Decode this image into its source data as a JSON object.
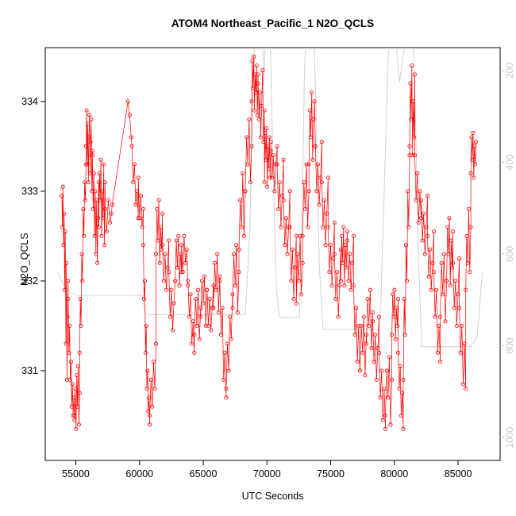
{
  "chart_data": {
    "type": "scatter",
    "title": "ATOM4 Northeast_Pacific_1 N2O_QCLS",
    "xlabel": "UTC Seconds",
    "ylabel": "N2O_QCLS",
    "xlim": [
      52600,
      88300
    ],
    "ylim": [
      330.0,
      334.6
    ],
    "y2lim": [
      150,
      1050
    ],
    "y2_reversed": true,
    "x_ticks": [
      55000,
      60000,
      65000,
      70000,
      75000,
      80000,
      85000
    ],
    "y_ticks": [
      331,
      332,
      333,
      334
    ],
    "y2_ticks": [
      200,
      400,
      600,
      800,
      1000
    ],
    "grid": false,
    "legend": "none",
    "colors": {
      "series": "#ff0000",
      "secondary": "#d4d4d4",
      "axis": "#000000",
      "right_axis": "#c8c8c8"
    },
    "series": [
      {
        "name": "N2O_QCLS",
        "style": "points+line",
        "marker": "open-circle",
        "clusters": [
          [
            53900,
            54400,
            [
              332.95,
              332.6,
              333.05,
              332.4,
              332.75,
              331.9,
              332.55,
              331.3,
              332.2,
              330.9,
              331.6,
              332.0
            ]
          ],
          [
            54400,
            54900,
            [
              331.8,
              331.2,
              331.5,
              330.9,
              331.1,
              330.6,
              330.85,
              330.5,
              330.7,
              330.45
            ]
          ],
          [
            54900,
            55300,
            [
              330.5,
              330.8,
              330.35,
              330.95,
              330.6,
              331.05,
              330.4,
              330.75
            ]
          ],
          [
            55300,
            55800,
            [
              331.2,
              331.8,
              331.5,
              332.3,
              332.0,
              332.8,
              332.5,
              333.1,
              332.9,
              333.3
            ]
          ],
          [
            55800,
            56300,
            [
              333.5,
              333.9,
              333.3,
              333.75,
              333.1,
              333.6,
              333.85,
              333.2,
              333.55,
              333.8,
              333.0,
              333.45
            ]
          ],
          [
            56300,
            56800,
            [
              333.4,
              332.8,
              333.2,
              332.5,
              333.0,
              332.3,
              332.9,
              332.2,
              332.7,
              333.1
            ]
          ],
          [
            56800,
            57300,
            [
              332.6,
              333.2,
              332.9,
              333.35,
              332.5,
              333.0,
              332.7,
              333.3,
              332.4,
              333.1
            ]
          ],
          [
            57300,
            57800,
            [
              332.8,
              332.55,
              332.9,
              332.65,
              332.75
            ]
          ],
          [
            57850,
            57950,
            [
              332.85
            ]
          ],
          [
            59100,
            59350,
            [
              334.0,
              333.85,
              333.6
            ]
          ],
          [
            59400,
            59900,
            [
              333.5,
              333.1,
              333.3,
              332.85,
              333.0,
              332.7
            ]
          ],
          [
            59900,
            60300,
            [
              333.15,
              332.7,
              332.95,
              332.6,
              332.8
            ]
          ],
          [
            60300,
            60800,
            [
              332.4,
              331.8,
              332.0,
              331.2,
              331.5,
              330.8,
              331.0,
              330.55,
              330.7,
              330.4
            ]
          ],
          [
            60800,
            61300,
            [
              330.5,
              330.9,
              330.6,
              331.1,
              330.8,
              331.3
            ]
          ],
          [
            61300,
            61800,
            [
              332.3,
              332.8,
              332.45,
              332.9,
              332.2,
              332.6,
              332.35,
              332.75
            ]
          ],
          [
            61800,
            62300,
            [
              332.4,
              332.0,
              332.3,
              331.9,
              332.15,
              332.45
            ]
          ],
          [
            62300,
            62800,
            [
              332.1,
              331.6,
              331.9,
              331.45,
              331.75,
              332.0
            ]
          ],
          [
            62800,
            63300,
            [
              332.0,
              332.45,
              332.15,
              332.5,
              331.95,
              332.3,
              332.1
            ]
          ],
          [
            63300,
            63800,
            [
              332.4,
              332.1,
              332.5,
              332.2,
              332.35,
              331.95
            ]
          ],
          [
            63800,
            64300,
            [
              332.0,
              331.6,
              331.85,
              331.3,
              331.55,
              331.2
            ]
          ],
          [
            64300,
            64800,
            [
              331.4,
              331.8,
              331.5,
              331.9,
              331.35,
              331.7
            ]
          ],
          [
            64800,
            65300,
            [
              331.6,
              332.0,
              331.75,
              332.05,
              331.5,
              331.9
            ]
          ],
          [
            65300,
            65800,
            [
              331.9,
              331.5,
              331.8,
              331.45,
              331.7,
              331.95
            ]
          ],
          [
            65800,
            66300,
            [
              331.7,
              332.2,
              331.9,
              332.3,
              331.65,
              332.05
            ]
          ],
          [
            66300,
            66800,
            [
              332.0,
              331.4,
              331.7,
              330.9,
              331.2,
              330.7
            ]
          ],
          [
            66800,
            67300,
            [
              330.8,
              331.3,
              331.0,
              331.6,
              331.35,
              331.85
            ]
          ],
          [
            67300,
            67800,
            [
              331.7,
              332.3,
              331.95,
              332.4,
              331.65,
              332.1
            ]
          ],
          [
            67800,
            68300,
            [
              332.35,
              332.9,
              332.6,
              333.2,
              332.5,
              333.0
            ]
          ],
          [
            68300,
            68800,
            [
              333.0,
              333.6,
              333.3,
              333.8,
              333.1,
              333.5
            ]
          ],
          [
            68800,
            69300,
            [
              334.0,
              334.45,
              334.15,
              334.5,
              333.9,
              334.3,
              334.1,
              334.4,
              333.85,
              334.2
            ]
          ],
          [
            69300,
            69800,
            [
              334.3,
              333.8,
              334.1,
              333.6,
              333.95,
              334.35,
              333.55,
              333.9
            ]
          ],
          [
            69800,
            70300,
            [
              333.1,
              333.65,
              333.35,
              333.7,
              333.05,
              333.5,
              333.25,
              333.6,
              333.15,
              333.45
            ]
          ],
          [
            70300,
            70800,
            [
              333.55,
              333.15,
              333.4,
              333.0,
              333.3,
              333.5
            ]
          ],
          [
            70800,
            71300,
            [
              333.3,
              332.8,
              333.1,
              332.6,
              332.95,
              333.35
            ]
          ],
          [
            71300,
            71800,
            [
              332.9,
              332.4,
              332.7,
              332.3,
              332.6,
              333.0
            ]
          ],
          [
            71800,
            72300,
            [
              332.6,
              332.0,
              332.35,
              331.8,
              332.15,
              332.5
            ]
          ],
          [
            72300,
            72800,
            [
              331.75,
              332.3,
              332.0,
              332.5,
              331.85,
              332.2
            ]
          ],
          [
            72800,
            73300,
            [
              332.5,
              333.1,
              332.8,
              333.3,
              332.6,
              333.0
            ]
          ],
          [
            73300,
            73800,
            [
              333.3,
              333.9,
              333.6,
              334.1,
              333.35,
              333.8,
              334.0,
              333.5
            ]
          ],
          [
            73800,
            74300,
            [
              333.5,
              333.0,
              333.3,
              332.85,
              333.15,
              333.55
            ]
          ],
          [
            74300,
            74800,
            [
              333.1,
              332.6,
              332.9,
              332.4,
              332.75,
              333.15
            ]
          ],
          [
            74800,
            75300,
            [
              332.6,
              332.1,
              332.4,
              331.95,
              332.25,
              332.65
            ]
          ],
          [
            75300,
            75800,
            [
              332.3,
              331.8,
              332.1,
              331.6,
              331.95,
              332.35
            ]
          ],
          [
            75800,
            76300,
            [
              332.0,
              332.5,
              332.2,
              332.6,
              331.95,
              332.4,
              332.15,
              332.55
            ]
          ],
          [
            76300,
            76800,
            [
              332.45,
              332.0,
              332.3,
              331.9,
              332.2,
              332.5
            ]
          ],
          [
            76800,
            77300,
            [
              331.95,
              331.4,
              331.7,
              331.1,
              331.5,
              331.0
            ]
          ],
          [
            77300,
            77800,
            [
              331.0,
              331.5,
              331.2,
              331.6,
              330.95,
              331.4
            ]
          ],
          [
            77800,
            78300,
            [
              331.3,
              331.8,
              331.5,
              331.9,
              331.25,
              331.65
            ]
          ],
          [
            78300,
            78800,
            [
              331.55,
              331.1,
              331.4,
              330.9,
              331.25,
              331.6
            ]
          ],
          [
            78800,
            79300,
            [
              331.2,
              330.7,
              331.0,
              330.45,
              330.8,
              330.35
            ]
          ],
          [
            79300,
            79800,
            [
              330.5,
              331.0,
              330.7,
              331.15,
              330.4,
              330.9
            ]
          ],
          [
            79800,
            80300,
            [
              331.4,
              331.85,
              331.6,
              331.9,
              331.35,
              331.7,
              331.5,
              331.8
            ]
          ],
          [
            80300,
            80700,
            [
              331.2,
              330.8,
              331.05,
              330.5,
              330.75,
              330.35
            ]
          ],
          [
            80700,
            81200,
            [
              330.9,
              331.8,
              331.4,
              332.4,
              332.0,
              333.0,
              332.6,
              333.4
            ]
          ],
          [
            81200,
            81600,
            [
              333.5,
              334.2,
              333.8,
              334.4,
              333.4,
              334.0,
              333.6,
              334.3
            ]
          ],
          [
            81600,
            82100,
            [
              333.4,
              332.9,
              333.2,
              332.65,
              333.0,
              332.7
            ]
          ],
          [
            82100,
            82600,
            [
              332.9,
              332.45,
              332.75,
              332.3,
              332.6,
              332.95
            ]
          ],
          [
            82600,
            83100,
            [
              332.5,
              332.05,
              332.35,
              331.9,
              332.2,
              332.55
            ]
          ],
          [
            83100,
            83600,
            [
              332.1,
              331.6,
              331.9,
              331.2,
              331.5,
              331.1
            ]
          ],
          [
            83600,
            84100,
            [
              331.6,
              332.2,
              331.85,
              332.3,
              331.55,
              332.0
            ]
          ],
          [
            84100,
            84600,
            [
              332.0,
              332.6,
              332.3,
              332.7,
              331.95,
              332.45,
              332.15,
              332.55
            ]
          ],
          [
            84600,
            85100,
            [
              332.2,
              331.7,
              332.0,
              331.5,
              331.85,
              332.25
            ]
          ],
          [
            85100,
            85600,
            [
              331.7,
              331.2,
              331.5,
              330.85,
              331.3,
              330.8
            ]
          ],
          [
            85600,
            86000,
            [
              331.9,
              332.5,
              332.2,
              332.8,
              332.1,
              332.6
            ]
          ],
          [
            86000,
            86400,
            [
              333.2,
              333.6,
              333.35,
              333.65,
              333.15,
              333.5,
              333.3,
              333.55
            ]
          ]
        ]
      },
      {
        "name": "secondary-gray-trace",
        "style": "line",
        "axis": "right",
        "points": [
          [
            53600,
            640
          ],
          [
            54000,
            665
          ],
          [
            54600,
            685
          ],
          [
            55000,
            690
          ],
          [
            60200,
            690
          ],
          [
            60450,
            732
          ],
          [
            68300,
            732
          ],
          [
            68650,
            550
          ],
          [
            68900,
            250
          ],
          [
            69050,
            120
          ],
          [
            69650,
            120
          ],
          [
            69750,
            230
          ],
          [
            69900,
            120
          ],
          [
            70250,
            120
          ],
          [
            70450,
            380
          ],
          [
            70750,
            680
          ],
          [
            71000,
            738
          ],
          [
            72550,
            738
          ],
          [
            72750,
            520
          ],
          [
            72950,
            200
          ],
          [
            73080,
            120
          ],
          [
            73680,
            120
          ],
          [
            73850,
            280
          ],
          [
            74100,
            620
          ],
          [
            74400,
            764
          ],
          [
            78750,
            764
          ],
          [
            78950,
            700
          ],
          [
            79250,
            420
          ],
          [
            79550,
            140
          ],
          [
            80100,
            130
          ],
          [
            80400,
            225
          ],
          [
            80800,
            150
          ],
          [
            81450,
            130
          ],
          [
            81650,
            300
          ],
          [
            81900,
            620
          ],
          [
            82150,
            802
          ],
          [
            85000,
            802
          ],
          [
            86000,
            802
          ],
          [
            86500,
            780
          ],
          [
            86900,
            640
          ]
        ]
      }
    ]
  }
}
